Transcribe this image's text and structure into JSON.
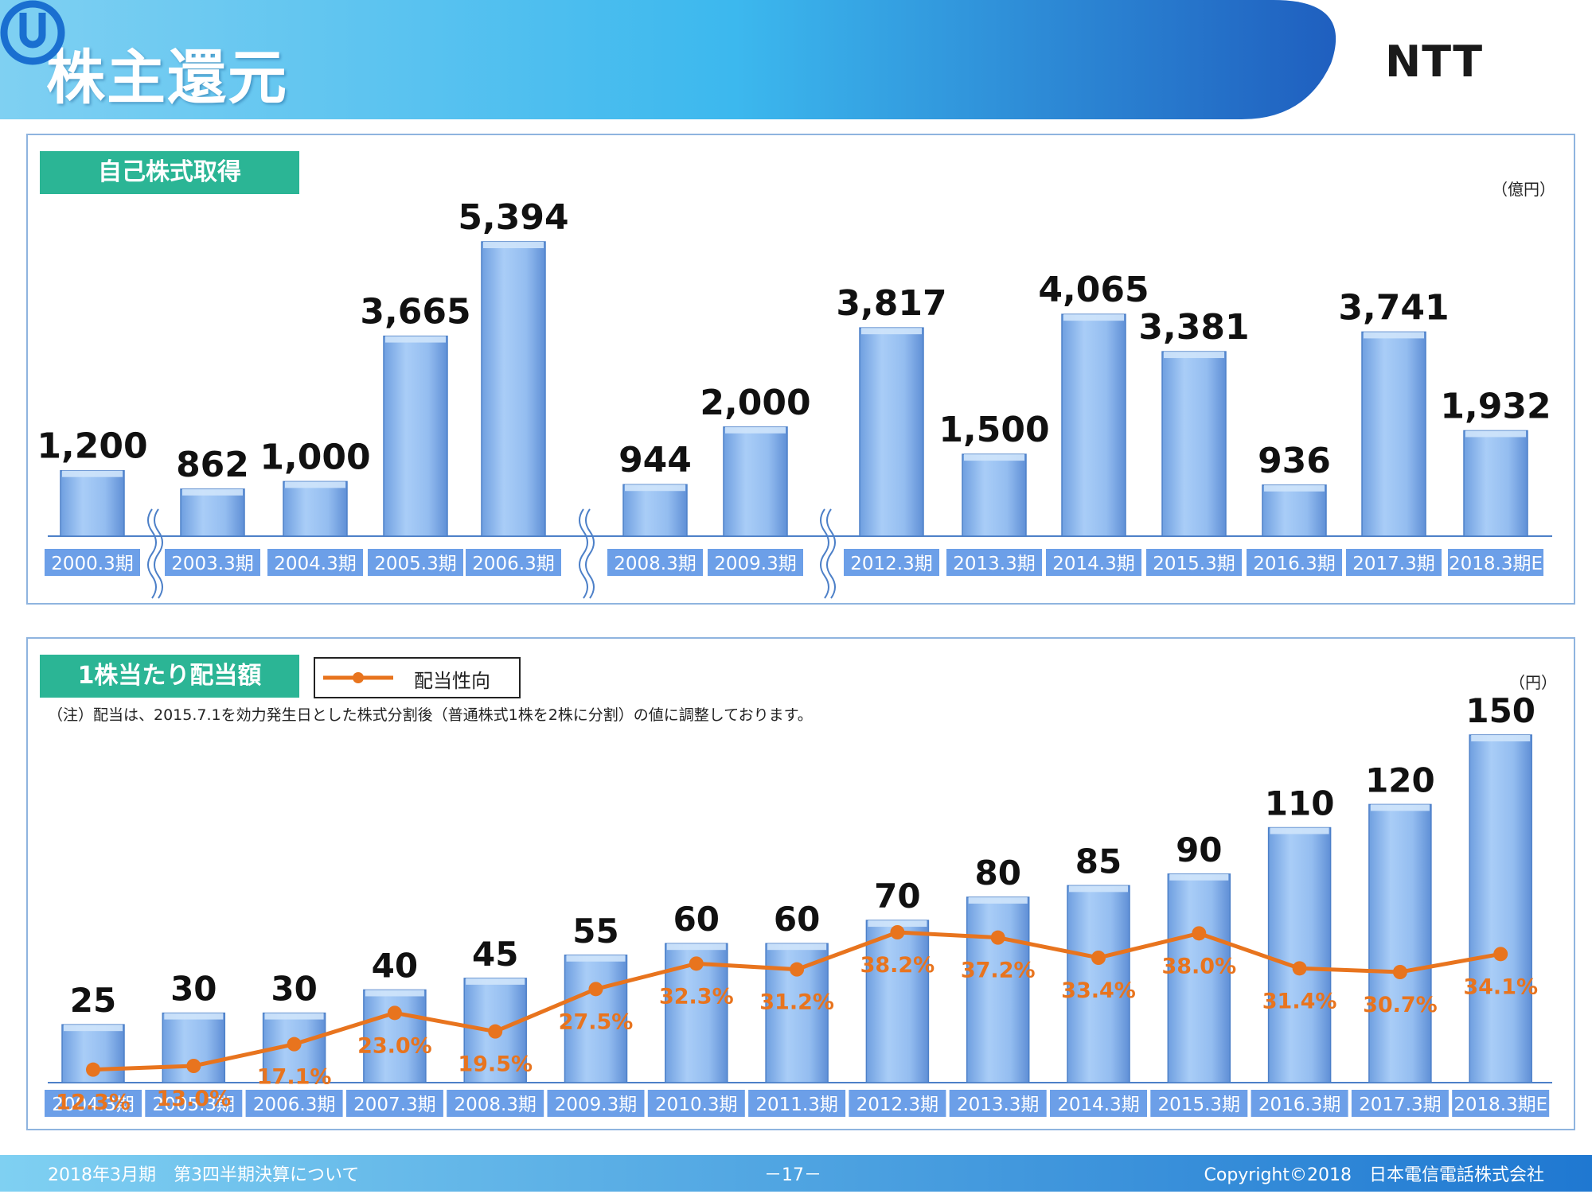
{
  "header": {
    "title": "株主還元",
    "logo_text": "NTT"
  },
  "panel1": {
    "title": "自己株式取得",
    "unit": "（億円）"
  },
  "panel2": {
    "title": "1株当たり配当額",
    "unit": "（円）",
    "legend_label": "配当性向",
    "note": "（注）配当は、2015.7.1を効力発生日とした株式分割後（普通株式1株を2株に分割）の値に調整しております。"
  },
  "footer": {
    "left": "2018年3月期　第3四半期決算について",
    "center": "－17－",
    "right": "Copyright©2018　日本電信電話株式会社"
  },
  "colors": {
    "bar_fill": "#94bdf0",
    "bar_edge": "#5a8fd6",
    "line": "#e8741e",
    "label_bg": "#6c9fe8",
    "teal": "#2bb595"
  },
  "chart_data": [
    {
      "type": "bar",
      "categories": [
        "2000.3期",
        "2003.3期",
        "2004.3期",
        "2005.3期",
        "2006.3期",
        "2008.3期",
        "2009.3期",
        "2012.3期",
        "2013.3期",
        "2014.3期",
        "2015.3期",
        "2016.3期",
        "2017.3期",
        "2018.3期E"
      ],
      "values": [
        1200,
        862,
        1000,
        3665,
        5394,
        944,
        2000,
        3817,
        1500,
        4065,
        3381,
        936,
        3741,
        1932
      ],
      "value_labels": [
        "1,200",
        "862",
        "1,000",
        "3,665",
        "5,394",
        "944",
        "2,000",
        "3,817",
        "1,500",
        "4,065",
        "3,381",
        "936",
        "3,741",
        "1,932"
      ],
      "axis_breaks_after": [
        "2000.3期",
        "2006.3期",
        "2009.3期"
      ],
      "ylim": [
        0,
        5394
      ]
    },
    {
      "type": "bar",
      "categories": [
        "2004.3期",
        "2005.3期",
        "2006.3期",
        "2007.3期",
        "2008.3期",
        "2009.3期",
        "2010.3期",
        "2011.3期",
        "2012.3期",
        "2013.3期",
        "2014.3期",
        "2015.3期",
        "2016.3期",
        "2017.3期",
        "2018.3期E"
      ],
      "values": [
        25,
        30,
        30,
        40,
        45,
        55,
        60,
        60,
        70,
        80,
        85,
        90,
        110,
        120,
        150
      ],
      "ylim": [
        0,
        150
      ],
      "series": [
        {
          "name": "配当性向",
          "type": "line",
          "values": [
            12.3,
            13.0,
            17.1,
            23.0,
            19.5,
            27.5,
            32.3,
            31.2,
            38.2,
            37.2,
            33.4,
            38.0,
            31.4,
            30.7,
            34.1
          ],
          "value_labels": [
            "12.3%",
            "13.0%",
            "17.1%",
            "23.0%",
            "19.5%",
            "27.5%",
            "32.3%",
            "31.2%",
            "38.2%",
            "37.2%",
            "33.4%",
            "38.0%",
            "31.4%",
            "30.7%",
            "34.1%"
          ]
        }
      ]
    }
  ]
}
